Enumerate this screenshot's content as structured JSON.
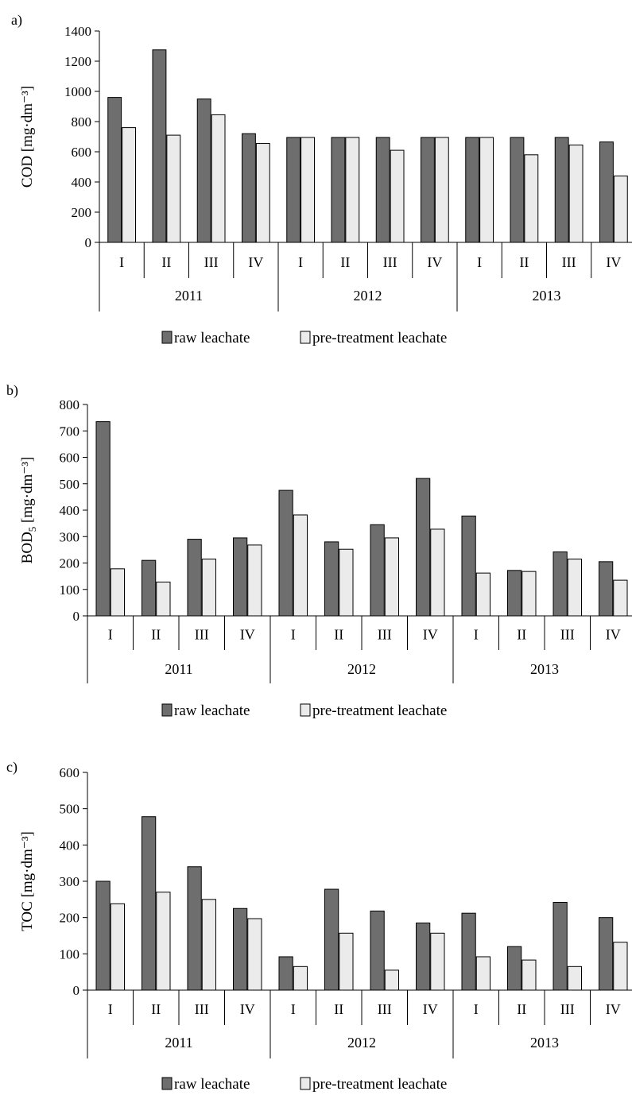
{
  "chart_data": [
    {
      "panel_label": "a)",
      "type": "bar",
      "ylabel": "COD [mg·dm⁻³]",
      "ylim": [
        0,
        1400
      ],
      "yticks": [
        0,
        200,
        400,
        600,
        800,
        1000,
        1200,
        1400
      ],
      "categories": [
        "I",
        "II",
        "III",
        "IV",
        "I",
        "II",
        "III",
        "IV",
        "I",
        "II",
        "III",
        "IV"
      ],
      "groups": [
        "2011",
        "2012",
        "2013"
      ],
      "grid": false,
      "legend_position": "bottom",
      "series": [
        {
          "name": "raw leachate",
          "color": "#6e6e6e",
          "values": [
            960,
            1275,
            950,
            720,
            695,
            695,
            695,
            695,
            695,
            695,
            695,
            665
          ]
        },
        {
          "name": "pre-treatment leachate",
          "color": "#ebebeb",
          "values": [
            760,
            710,
            845,
            655,
            695,
            695,
            610,
            695,
            695,
            580,
            645,
            440
          ]
        }
      ]
    },
    {
      "panel_label": "b)",
      "type": "bar",
      "ylabel_main": "BOD",
      "ylabel_sub": "5",
      "ylabel_rest": " [mg·dm⁻³]",
      "ylim": [
        0,
        800
      ],
      "yticks": [
        0,
        100,
        200,
        300,
        400,
        500,
        600,
        700,
        800
      ],
      "categories": [
        "I",
        "II",
        "III",
        "IV",
        "I",
        "II",
        "III",
        "IV",
        "I",
        "II",
        "III",
        "IV"
      ],
      "groups": [
        "2011",
        "2012",
        "2013"
      ],
      "grid": false,
      "legend_position": "bottom",
      "series": [
        {
          "name": "raw leachate",
          "color": "#6e6e6e",
          "values": [
            735,
            210,
            290,
            295,
            475,
            280,
            345,
            520,
            378,
            172,
            242,
            205
          ]
        },
        {
          "name": "pre-treatment leachate",
          "color": "#ebebeb",
          "values": [
            178,
            128,
            215,
            268,
            382,
            252,
            295,
            328,
            162,
            168,
            215,
            135
          ]
        }
      ]
    },
    {
      "panel_label": "c)",
      "type": "bar",
      "ylabel": "TOC [mg·dm⁻³]",
      "ylim": [
        0,
        600
      ],
      "yticks": [
        0,
        100,
        200,
        300,
        400,
        500,
        600
      ],
      "categories": [
        "I",
        "II",
        "III",
        "IV",
        "I",
        "II",
        "III",
        "IV",
        "I",
        "II",
        "III",
        "IV"
      ],
      "groups": [
        "2011",
        "2012",
        "2013"
      ],
      "grid": false,
      "legend_position": "bottom",
      "series": [
        {
          "name": "raw leachate",
          "color": "#6e6e6e",
          "values": [
            300,
            478,
            340,
            225,
            92,
            278,
            218,
            185,
            212,
            120,
            242,
            200
          ]
        },
        {
          "name": "pre-treatment leachate",
          "color": "#ebebeb",
          "values": [
            238,
            270,
            250,
            197,
            65,
            157,
            55,
            157,
            92,
            83,
            65,
            132
          ]
        }
      ]
    }
  ]
}
